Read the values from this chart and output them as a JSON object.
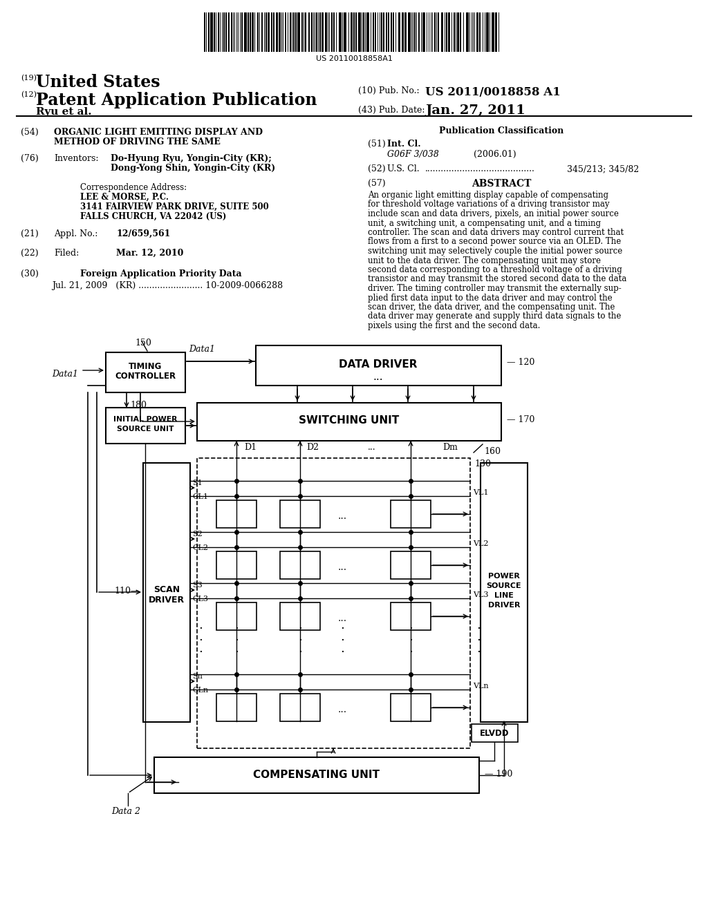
{
  "bg_color": "#ffffff",
  "barcode_text": "US 20110018858A1",
  "title_us": "United States",
  "title_pap": "Patent Application Publication",
  "title_pubno": "US 2011/0018858 A1",
  "title_ryu": "Ryu et al.",
  "title_date": "Jan. 27, 2011",
  "s54_text1": "ORGANIC LIGHT EMITTING DISPLAY AND",
  "s54_text2": "METHOD OF DRIVING THE SAME",
  "pub_class_title": "Publication Classification",
  "s51_class": "G06F 3/038",
  "s51_year": "(2006.01)",
  "s52_val": "345/213; 345/82",
  "abstract_lines": [
    "An organic light emitting display capable of compensating",
    "for threshold voltage variations of a driving transistor may",
    "include scan and data drivers, pixels, an initial power source",
    "unit, a switching unit, a compensating unit, and a timing",
    "controller. The scan and data drivers may control current that",
    "flows from a first to a second power source via an OLED. The",
    "switching unit may selectively couple the initial power source",
    "unit to the data driver. The compensating unit may store",
    "second data corresponding to a threshold voltage of a driving",
    "transistor and may transmit the stored second data to the data",
    "driver. The timing controller may transmit the externally sup-",
    "plied first data input to the data driver and may control the",
    "scan driver, the data driver, and the compensating unit. The",
    "data driver may generate and supply third data signals to the",
    "pixels using the first and the second data."
  ],
  "s76_val1": "Do-Hyung Ryu, Yongin-City (KR);",
  "s76_val2": "Dong-Yong Shin, Yongin-City (KR)",
  "corr_addr": "Correspondence Address:",
  "corr_name": "LEE & MORSE, P.C.",
  "corr_street": "3141 FAIRVIEW PARK DRIVE, SUITE 500",
  "corr_city": "FALLS CHURCH, VA 22042 (US)",
  "s21_val": "12/659,561",
  "s22_val": "Mar. 12, 2010",
  "s30_val": "Jul. 21, 2009   (KR) ........................ 10-2009-0066288"
}
